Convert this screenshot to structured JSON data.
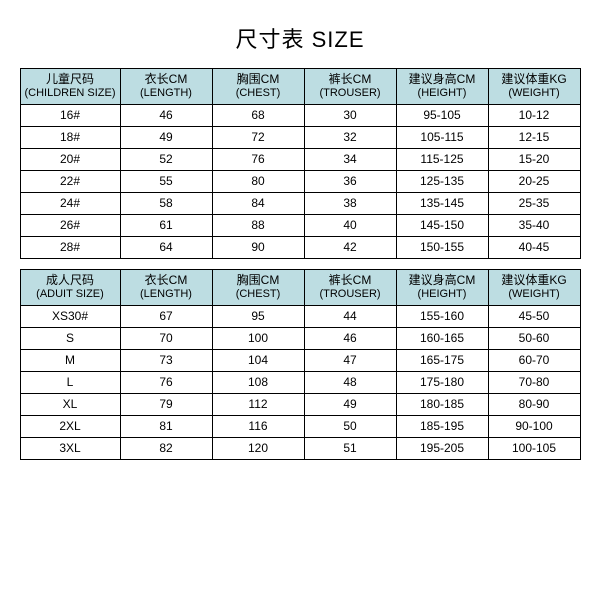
{
  "title": "尺寸表 SIZE",
  "header_bg": "#bddde2",
  "border_color": "#000000",
  "children_table": {
    "columns": [
      {
        "cn": "儿童尺码",
        "en": "(CHILDREN SIZE)"
      },
      {
        "cn": "衣长CM",
        "en": "(LENGTH)"
      },
      {
        "cn": "胸围CM",
        "en": "(CHEST)"
      },
      {
        "cn": "裤长CM",
        "en": "(TROUSER)"
      },
      {
        "cn": "建议身高CM",
        "en": "(HEIGHT)"
      },
      {
        "cn": "建议体重KG",
        "en": "(WEIGHT)"
      }
    ],
    "rows": [
      [
        "16#",
        "46",
        "68",
        "30",
        "95-105",
        "10-12"
      ],
      [
        "18#",
        "49",
        "72",
        "32",
        "105-115",
        "12-15"
      ],
      [
        "20#",
        "52",
        "76",
        "34",
        "115-125",
        "15-20"
      ],
      [
        "22#",
        "55",
        "80",
        "36",
        "125-135",
        "20-25"
      ],
      [
        "24#",
        "58",
        "84",
        "38",
        "135-145",
        "25-35"
      ],
      [
        "26#",
        "61",
        "88",
        "40",
        "145-150",
        "35-40"
      ],
      [
        "28#",
        "64",
        "90",
        "42",
        "150-155",
        "40-45"
      ]
    ]
  },
  "adult_table": {
    "columns": [
      {
        "cn": "成人尺码",
        "en": "(ADUIT SIZE)"
      },
      {
        "cn": "衣长CM",
        "en": "(LENGTH)"
      },
      {
        "cn": "胸围CM",
        "en": "(CHEST)"
      },
      {
        "cn": "裤长CM",
        "en": "(TROUSER)"
      },
      {
        "cn": "建议身高CM",
        "en": "(HEIGHT)"
      },
      {
        "cn": "建议体重KG",
        "en": "(WEIGHT)"
      }
    ],
    "rows": [
      [
        "XS30#",
        "67",
        "95",
        "44",
        "155-160",
        "45-50"
      ],
      [
        "S",
        "70",
        "100",
        "46",
        "160-165",
        "50-60"
      ],
      [
        "M",
        "73",
        "104",
        "47",
        "165-175",
        "60-70"
      ],
      [
        "L",
        "76",
        "108",
        "48",
        "175-180",
        "70-80"
      ],
      [
        "XL",
        "79",
        "112",
        "49",
        "180-185",
        "80-90"
      ],
      [
        "2XL",
        "81",
        "116",
        "50",
        "185-195",
        "90-100"
      ],
      [
        "3XL",
        "82",
        "120",
        "51",
        "195-205",
        "100-105"
      ]
    ]
  }
}
